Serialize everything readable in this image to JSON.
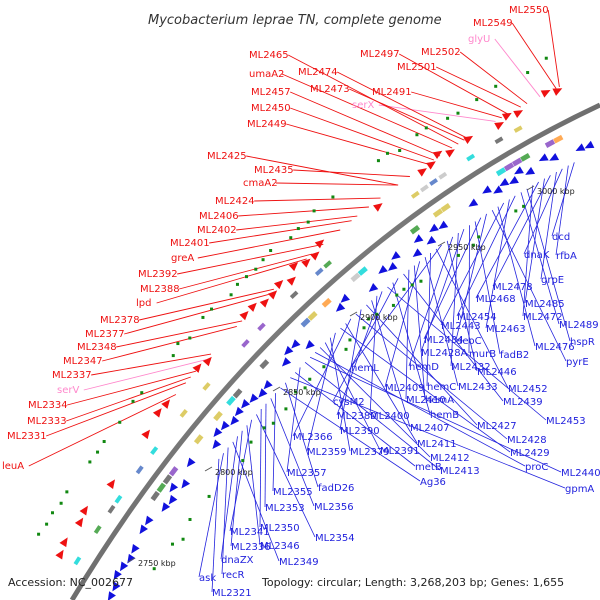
{
  "title": "Mycobacterium leprae TN, complete genome",
  "footer": {
    "accession": "Accession: NC_002677",
    "summary": "Topology: circular; Length: 3,268,203 bp; Genes: 1,655"
  },
  "colors": {
    "outer_label": "#ee1111",
    "outer_rna_label": "#ff88cc",
    "inner_label": "#2222dd",
    "outer_arrow": "#ee1111",
    "inner_arrow": "#1111dd",
    "backbone": "#999999"
  },
  "kbp_ticks": [
    "2750 kbp",
    "2800 kbp",
    "2850 kbp",
    "2900 kbp",
    "2950 kbp",
    "3000 kbp"
  ],
  "outer_labels": [
    {
      "text": "ML2550",
      "type": "gene"
    },
    {
      "text": "ML2549",
      "type": "gene"
    },
    {
      "text": "glyU",
      "type": "rna"
    },
    {
      "text": "ML2502",
      "type": "gene"
    },
    {
      "text": "ML2501",
      "type": "gene"
    },
    {
      "text": "ML2497",
      "type": "gene"
    },
    {
      "text": "ML2491",
      "type": "gene"
    },
    {
      "text": "serX",
      "type": "rna"
    },
    {
      "text": "ML2465",
      "type": "gene"
    },
    {
      "text": "ML2474",
      "type": "gene"
    },
    {
      "text": "umaA2",
      "type": "gene"
    },
    {
      "text": "ML2473",
      "type": "gene"
    },
    {
      "text": "ML2457",
      "type": "gene"
    },
    {
      "text": "ML2450",
      "type": "gene"
    },
    {
      "text": "ML2449",
      "type": "gene"
    },
    {
      "text": "ML2425",
      "type": "gene"
    },
    {
      "text": "ML2435",
      "type": "gene"
    },
    {
      "text": "cmaA2",
      "type": "gene"
    },
    {
      "text": "ML2424",
      "type": "gene"
    },
    {
      "text": "ML2406",
      "type": "gene"
    },
    {
      "text": "ML2402",
      "type": "gene"
    },
    {
      "text": "ML2401",
      "type": "gene"
    },
    {
      "text": "greA",
      "type": "gene"
    },
    {
      "text": "ML2392",
      "type": "gene"
    },
    {
      "text": "ML2388",
      "type": "gene"
    },
    {
      "text": "lpd",
      "type": "gene"
    },
    {
      "text": "ML2378",
      "type": "gene"
    },
    {
      "text": "ML2377",
      "type": "gene"
    },
    {
      "text": "ML2348",
      "type": "gene"
    },
    {
      "text": "ML2347",
      "type": "gene"
    },
    {
      "text": "ML2337",
      "type": "gene"
    },
    {
      "text": "serV",
      "type": "rna"
    },
    {
      "text": "ML2334",
      "type": "gene"
    },
    {
      "text": "ML2333",
      "type": "gene"
    },
    {
      "text": "ML2331",
      "type": "gene"
    },
    {
      "text": "leuA",
      "type": "gene"
    }
  ],
  "inner_labels": [
    {
      "text": "dcd"
    },
    {
      "text": "rfbA"
    },
    {
      "text": "dnaK"
    },
    {
      "text": "grpE"
    },
    {
      "text": "ML2478"
    },
    {
      "text": "ML2485"
    },
    {
      "text": "ML2468"
    },
    {
      "text": "ML2472"
    },
    {
      "text": "hspR"
    },
    {
      "text": "ML2489"
    },
    {
      "text": "ML2454"
    },
    {
      "text": "ML2463"
    },
    {
      "text": "ML2443"
    },
    {
      "text": "ML2476"
    },
    {
      "text": "pyrE"
    },
    {
      "text": "deoC"
    },
    {
      "text": "ML2434"
    },
    {
      "text": "fadB2"
    },
    {
      "text": "murB"
    },
    {
      "text": "ML2428A"
    },
    {
      "text": "ML2432"
    },
    {
      "text": "hemD"
    },
    {
      "text": "ML2446"
    },
    {
      "text": "hemL"
    },
    {
      "text": "ML2452"
    },
    {
      "text": "hemC"
    },
    {
      "text": "ML2433"
    },
    {
      "text": "ML2409"
    },
    {
      "text": "hemA"
    },
    {
      "text": "ML2410"
    },
    {
      "text": "ML2439"
    },
    {
      "text": "cysM2"
    },
    {
      "text": "hemB"
    },
    {
      "text": "ML2453"
    },
    {
      "text": "ML2380"
    },
    {
      "text": "ML2400"
    },
    {
      "text": "ML2407"
    },
    {
      "text": "ML2427"
    },
    {
      "text": "ML2390"
    },
    {
      "text": "ML2428"
    },
    {
      "text": "ML2366"
    },
    {
      "text": "ML2411"
    },
    {
      "text": "ML2429"
    },
    {
      "text": "ML2359"
    },
    {
      "text": "ML2379"
    },
    {
      "text": "ML2391"
    },
    {
      "text": "ML2412"
    },
    {
      "text": "proC"
    },
    {
      "text": "ML2440"
    },
    {
      "text": "ML2413"
    },
    {
      "text": "ML2357"
    },
    {
      "text": "metB"
    },
    {
      "text": "gpmA"
    },
    {
      "text": "fadD26"
    },
    {
      "text": "Ag36"
    },
    {
      "text": "ML2355"
    },
    {
      "text": "ML2356"
    },
    {
      "text": "ML2353"
    },
    {
      "text": "ML2350"
    },
    {
      "text": "ML2354"
    },
    {
      "text": "ML2341"
    },
    {
      "text": "ML2346"
    },
    {
      "text": "ML2336"
    },
    {
      "text": "dnaZX"
    },
    {
      "text": "ML2349"
    },
    {
      "text": "recR"
    },
    {
      "text": "ask"
    },
    {
      "text": "ML2321"
    }
  ]
}
